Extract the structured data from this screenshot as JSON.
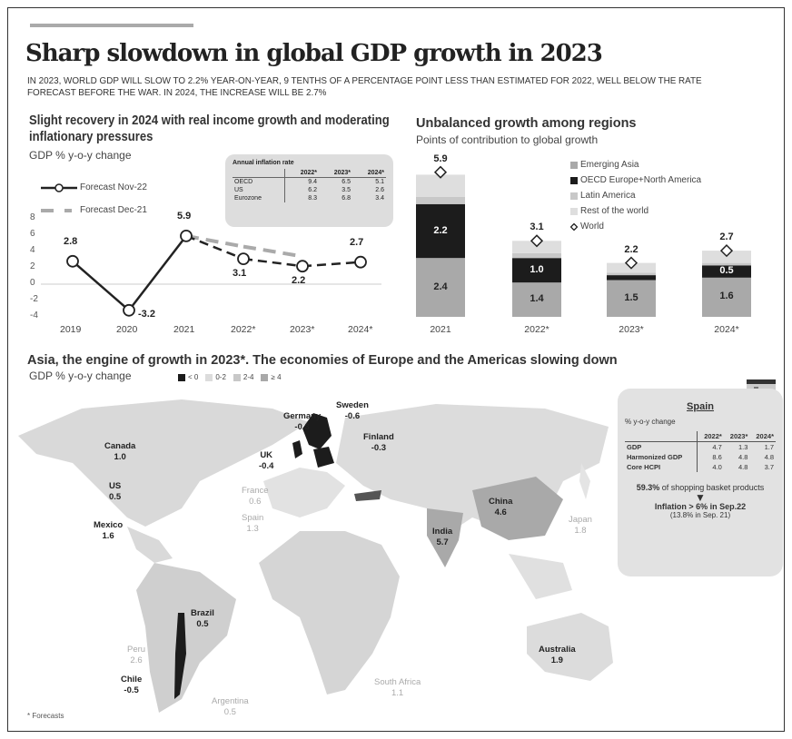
{
  "header": {
    "title": "Sharp slowdown in global GDP growth in 2023",
    "subtitle": "IN 2023, WORLD GDP WILL SLOW TO 2.2% YEAR-ON-YEAR, 9 TENTHS OF A PERCENTAGE POINT LESS THAN ESTIMATED FOR 2022, WELL BELOW THE RATE FORECAST BEFORE THE WAR. IN 2024, THE INCREASE WILL BE 2.7%"
  },
  "chart_data": [
    {
      "type": "line",
      "title": "Slight recovery in 2024 with real income growth and moderating inflationary pressures",
      "ylabel": "GDP % y-o-y change",
      "categories": [
        "2019",
        "2020",
        "2021",
        "2022*",
        "2023*",
        "2024*"
      ],
      "yticks": [
        "8",
        "6",
        "4",
        "2",
        "0",
        "-2",
        "-4"
      ],
      "ylim": [
        -4,
        8
      ],
      "series": [
        {
          "name": "Forecast Nov-22",
          "values": [
            2.8,
            -3.2,
            5.9,
            3.1,
            2.2,
            2.7
          ],
          "labels": [
            "2.8",
            "-3.2",
            "5.9",
            "3.1",
            "2.2",
            "2.7"
          ]
        },
        {
          "name": "Forecast Dec-21",
          "values": [
            null,
            null,
            5.9,
            4.6,
            3.4,
            null
          ]
        }
      ]
    },
    {
      "type": "bar",
      "stacked": true,
      "title": "Unbalanced growth among regions",
      "subtitle": "Points of contribution to global growth",
      "categories": [
        "2021",
        "2022*",
        "2023*",
        "2024*"
      ],
      "series": [
        {
          "name": "Emerging Asia",
          "values": [
            2.4,
            1.4,
            1.5,
            1.6
          ],
          "labels": [
            "2.4",
            "1.4",
            "1.5",
            "1.6"
          ],
          "color": "#a9a9a9"
        },
        {
          "name": "OECD Europe+North America",
          "values": [
            2.2,
            1.0,
            0.2,
            0.5
          ],
          "labels": [
            "2.2",
            "1.0",
            "0.2",
            "0.5"
          ],
          "color": "#1c1c1c"
        },
        {
          "name": "Latin America",
          "values": [
            0.3,
            0.2,
            0.1,
            0.1
          ],
          "color": "#c8c8c8"
        },
        {
          "name": "Rest of the world",
          "values": [
            0.9,
            0.5,
            0.4,
            0.5
          ],
          "color": "#dedede"
        }
      ],
      "world": {
        "name": "World",
        "values": [
          5.9,
          3.1,
          2.2,
          2.7
        ],
        "labels": [
          "5.9",
          "3.1",
          "2.2",
          "2.7"
        ]
      }
    }
  ],
  "inflation": {
    "title": "Annual inflation rate",
    "cols": [
      "2022*",
      "2023*",
      "2024*"
    ],
    "rows": [
      [
        "OECD",
        "9.4",
        "6.5",
        "5.1"
      ],
      [
        "US",
        "6.2",
        "3.5",
        "2.6"
      ],
      [
        "Eurozone",
        "8.3",
        "6.8",
        "3.4"
      ]
    ]
  },
  "map": {
    "title": "Asia, the engine of growth in 2023*. The economies of Europe and the Americas slowing down",
    "subtitle": "GDP % y-o-y change",
    "legend": [
      {
        "label": "< 0",
        "color": "#1c1c1c"
      },
      {
        "label": "0-2",
        "color": "#dcdcdc"
      },
      {
        "label": "2-4",
        "color": "#c8c8c8"
      },
      {
        "label": "≥ 4",
        "color": "#a9a9a9"
      }
    ],
    "countries": [
      {
        "name": "Canada",
        "value": "1.0"
      },
      {
        "name": "US",
        "value": "0.5"
      },
      {
        "name": "Mexico",
        "value": "1.6"
      },
      {
        "name": "Brazil",
        "value": "0.5"
      },
      {
        "name": "Peru",
        "value": "2.6"
      },
      {
        "name": "Chile",
        "value": "-0.5"
      },
      {
        "name": "Argentina",
        "value": "0.5"
      },
      {
        "name": "UK",
        "value": "-0.4"
      },
      {
        "name": "Germany",
        "value": "-0.3"
      },
      {
        "name": "Sweden",
        "value": "-0.6"
      },
      {
        "name": "Finland",
        "value": "-0.3"
      },
      {
        "name": "France",
        "value": "0.6"
      },
      {
        "name": "Spain",
        "value": "1.3"
      },
      {
        "name": "India",
        "value": "5.7"
      },
      {
        "name": "China",
        "value": "4.6"
      },
      {
        "name": "Japan",
        "value": "1.8"
      },
      {
        "name": "Australia",
        "value": "1.9"
      },
      {
        "name": "South Africa",
        "value": "1.1"
      }
    ],
    "footnote": "* Forecasts"
  },
  "spain": {
    "title": "Spain",
    "subtitle": "% y-o-y change",
    "cols": [
      "2022*",
      "2023*",
      "2024*"
    ],
    "rows": [
      [
        "GDP",
        "4.7",
        "1.3",
        "1.7"
      ],
      [
        "Harmonized GDP",
        "8.6",
        "4.8",
        "4.8"
      ],
      [
        "Core HCPI",
        "4.0",
        "4.8",
        "3.7"
      ]
    ],
    "note1_value": "59.3%",
    "note1_text": " of shopping basket products",
    "note2": "Inflation > 6% in Sep.22",
    "note3": "(13.8% in Sep. 21)"
  }
}
